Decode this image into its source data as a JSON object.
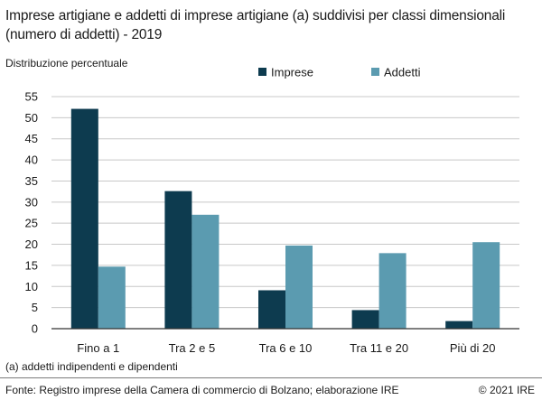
{
  "header": {
    "title": "Imprese artigiane e addetti di imprese artigiane (a) suddivisi per classi dimensionali (numero di addetti) - 2019",
    "subtitle": "Distribuzione percentuale"
  },
  "footnote": "(a) addetti indipendenti e dipendenti",
  "footer": {
    "source": "Fonte: Registro imprese della Camera di commercio di Bolzano; elaborazione IRE",
    "copyright": "© 2021 IRE"
  },
  "colors": {
    "imprese": "#0d3b4f",
    "addetti": "#5b9bb0",
    "grid": "#c8c8c8",
    "axis": "#333333"
  },
  "chart_data": {
    "type": "bar",
    "categories": [
      "Fino a 1",
      "Tra 2 e 5",
      "Tra 6 e 10",
      "Tra 11 e 20",
      "Più di 20"
    ],
    "series": [
      {
        "name": "Imprese",
        "values": [
          52.1,
          32.6,
          9.1,
          4.4,
          1.8
        ]
      },
      {
        "name": "Addetti",
        "values": [
          14.7,
          27.0,
          19.7,
          17.9,
          20.5
        ]
      }
    ],
    "ylim": [
      0,
      55
    ],
    "yticks": [
      0,
      5,
      10,
      15,
      20,
      25,
      30,
      35,
      40,
      45,
      50,
      55
    ],
    "grid": true,
    "legend": "top"
  }
}
